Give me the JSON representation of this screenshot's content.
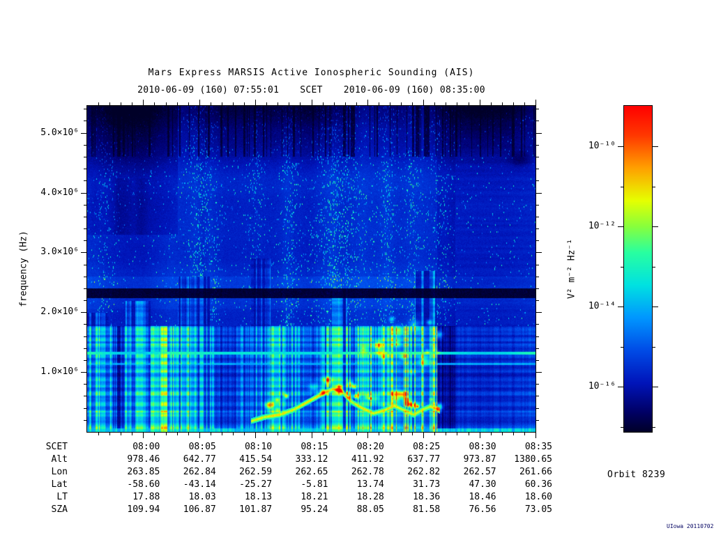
{
  "title": "Mars Express MARSIS Active Ionospheric Sounding (AIS)",
  "subtitle": {
    "start": "2010-06-09 (160) 07:55:01",
    "scet": "SCET",
    "end": "2010-06-09 (160) 08:35:00"
  },
  "y_axis": {
    "label": "frequency (Hz)",
    "ticks": [
      {
        "label": "5.0×10⁶",
        "f": 5.0
      },
      {
        "label": "4.0×10⁶",
        "f": 4.0
      },
      {
        "label": "3.0×10⁶",
        "f": 3.0
      },
      {
        "label": "2.0×10⁶",
        "f": 2.0
      },
      {
        "label": "1.0×10⁶",
        "f": 1.0
      }
    ]
  },
  "x_axis": {
    "duration_min": 40,
    "tick_minutes": [
      5,
      10,
      15,
      20,
      25,
      30,
      35,
      40
    ],
    "minor_step_min": 1
  },
  "colorbar": {
    "label": "V² m⁻² Hz⁻¹",
    "ticks": [
      {
        "label": "10⁻¹⁰",
        "exp": -10
      },
      {
        "label": "10⁻¹²",
        "exp": -12
      },
      {
        "label": "10⁻¹⁴",
        "exp": -14
      },
      {
        "label": "10⁻¹⁶",
        "exp": -16
      }
    ],
    "minor_exps": [
      -11,
      -13,
      -15,
      -17
    ]
  },
  "table": {
    "rows": [
      {
        "label": "SCET",
        "values": [
          "08:00",
          "08:05",
          "08:10",
          "08:15",
          "08:20",
          "08:25",
          "08:30",
          "08:35"
        ]
      },
      {
        "label": "Alt",
        "values": [
          "978.46",
          "642.77",
          "415.54",
          "333.12",
          "411.92",
          "637.77",
          "973.87",
          "1380.65"
        ]
      },
      {
        "label": "Lon",
        "values": [
          "263.85",
          "262.84",
          "262.59",
          "262.65",
          "262.78",
          "262.82",
          "262.57",
          "261.66"
        ]
      },
      {
        "label": "Lat",
        "values": [
          "-58.60",
          "-43.14",
          "-25.27",
          "-5.81",
          "13.74",
          "31.73",
          "47.30",
          "60.36"
        ]
      },
      {
        "label": "LT",
        "values": [
          "17.88",
          "18.03",
          "18.13",
          "18.21",
          "18.28",
          "18.36",
          "18.46",
          "18.60"
        ]
      },
      {
        "label": "SZA",
        "values": [
          "109.94",
          "106.87",
          "101.87",
          "95.24",
          "88.05",
          "81.58",
          "76.56",
          "73.05"
        ]
      }
    ]
  },
  "orbit_label": "Orbit 8239",
  "stamp": "UIowa 20110702",
  "chart_data": {
    "type": "heatmap",
    "title": "Mars Express MARSIS Active Ionospheric Sounding (AIS)",
    "x_axis": {
      "label": "SCET",
      "start": "2010-06-09 (160) 07:55:01",
      "end": "2010-06-09 (160) 08:35:00",
      "tick_labels": [
        "08:00",
        "08:05",
        "08:10",
        "08:15",
        "08:20",
        "08:25",
        "08:30",
        "08:35"
      ]
    },
    "y_axis": {
      "label": "frequency (Hz)",
      "min_hz": 0,
      "max_hz": 5450000,
      "tick_values_hz": [
        1000000,
        2000000,
        3000000,
        4000000,
        5000000
      ],
      "scale": "linear"
    },
    "color_scale": {
      "label": "V² m⁻² Hz⁻¹",
      "min": 1e-17,
      "max": 1e-09,
      "tick_values": [
        1e-10,
        1e-12,
        1e-14,
        1e-16
      ],
      "scale": "log",
      "colormap": "rainbow (dark blue → blue → cyan → green → yellow → red)"
    },
    "orbit": 8239,
    "features": [
      "Deep blue background noise floor near 10⁻¹⁶ V²/m²/Hz over most of the frequency-time plane",
      "Nearly black horizontal interference band at ~2.3 MHz across the entire pass",
      "Bright cyan banded region of strong ionospheric/plasma emission below ~1.7 MHz with fine horizontal striations and vertical sounding comb structure",
      "Thin bright horizontal line at ~1.3 MHz spanning the full time range",
      "Yellow-green ionospheric echo trace arcing near the bottom between ~08:10 and ~08:26, peaking near 08:17",
      "Dark low-signal region above ~4.3 MHz, darkest at the start of the pass (07:55-08:02)",
      "Vertical cyan speckle streaks (sounder echoes) at mid frequencies, strongest 08:05-08:25",
      "Data gap / attenuated column near 08:26",
      "Dimmer, horizontally striated blue region after 08:26 at low frequencies"
    ],
    "ephemeris_rows": [
      "SCET",
      "Alt",
      "Lon",
      "Lat",
      "LT",
      "SZA"
    ]
  }
}
